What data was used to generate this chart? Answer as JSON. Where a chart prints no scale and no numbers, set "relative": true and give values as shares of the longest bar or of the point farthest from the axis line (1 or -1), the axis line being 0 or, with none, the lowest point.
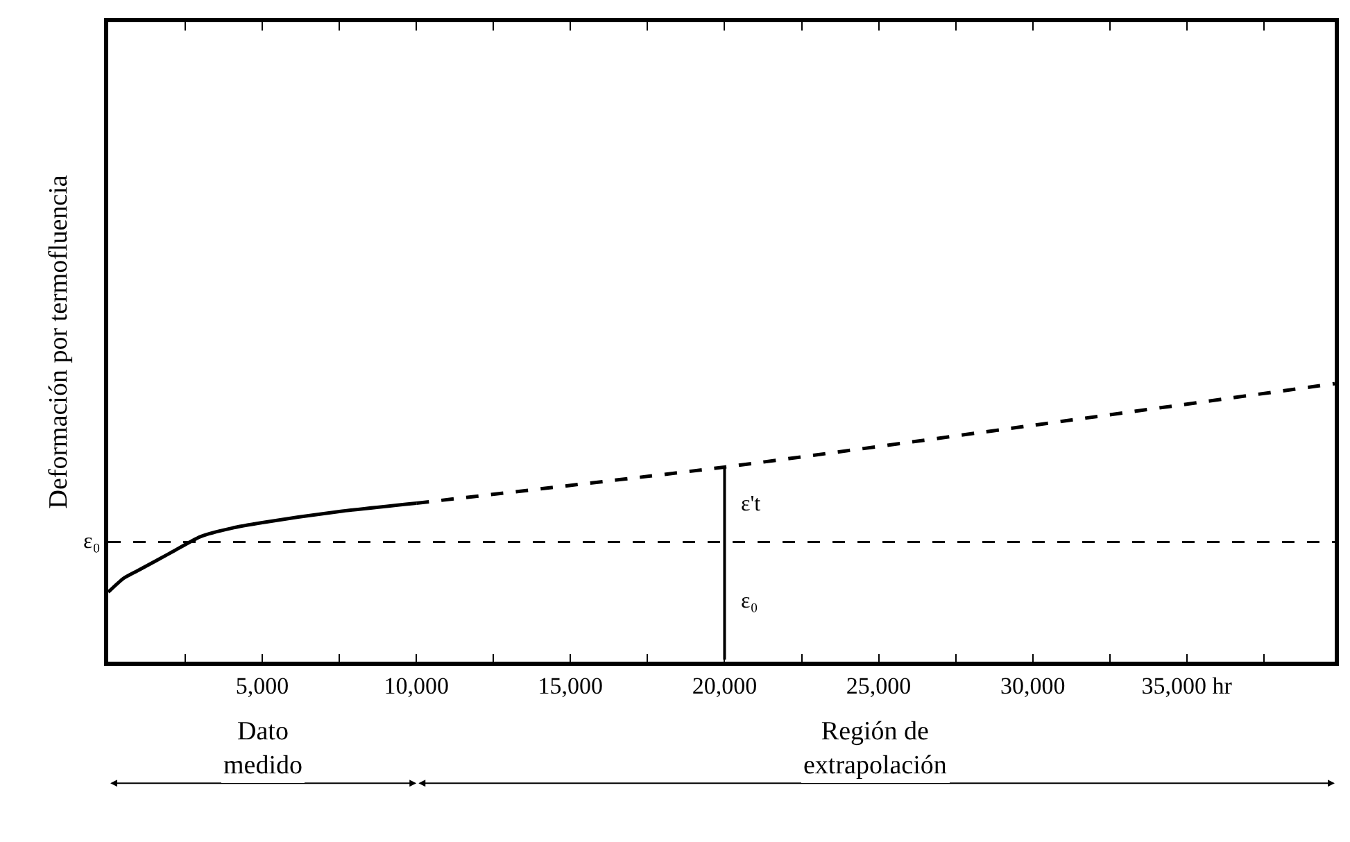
{
  "chart_data": {
    "type": "line",
    "ylabel": "Deformación por termofluencia",
    "relative": true,
    "xlim": [
      0,
      39800
    ],
    "xticks": [
      {
        "value": 2500,
        "label": null
      },
      "5,000",
      {
        "value": 7500,
        "label": null
      },
      {
        "value": 10000,
        "label": "10,000"
      },
      {
        "value": 12500,
        "label": null
      },
      {
        "value": 15000,
        "label": "15,000"
      },
      {
        "value": 17500,
        "label": null
      },
      {
        "value": 20000,
        "label": "20,000"
      },
      {
        "value": 22500,
        "label": null
      },
      {
        "value": 25000,
        "label": "25,000"
      },
      {
        "value": 27500,
        "label": null
      },
      {
        "value": 30000,
        "label": "30,000"
      },
      {
        "value": 32500,
        "label": null
      },
      {
        "value": 35000,
        "label": "35,000 hr"
      },
      {
        "value": 37500,
        "label": null
      }
    ],
    "series": [
      {
        "color": "#000000",
        "line_style": "solid",
        "x": [
          0,
          500,
          1000,
          2000,
          3000,
          4000,
          5000,
          7500,
          10000
        ],
        "values": [
          0.25,
          0.3,
          0.33,
          0.39,
          0.45,
          0.48,
          0.5,
          0.54,
          0.57
        ]
      },
      {
        "color": "#000000",
        "line_style": "dashed",
        "x": [
          10000,
          20000,
          30000,
          39800
        ],
        "values": [
          0.57,
          0.7,
          0.85,
          1.0
        ]
      }
    ],
    "ref_lines": [
      {
        "axis": "y",
        "value": 0.43,
        "label": "ε₀",
        "line_style": "dashed",
        "color": "#000000"
      },
      {
        "axis": "x",
        "value": 20000,
        "color": "#000000"
      }
    ],
    "annotations": [
      "ε't",
      "ε₀",
      "Dato\nmedido",
      "Región de\nextrapolación"
    ],
    "marker": "none"
  }
}
